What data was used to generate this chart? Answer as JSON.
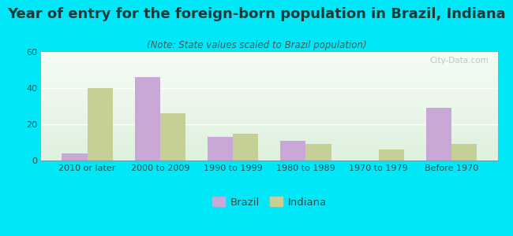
{
  "title": "Year of entry for the foreign-born population in Brazil, Indiana",
  "subtitle": "(Note: State values scaled to Brazil population)",
  "categories": [
    "2010 or later",
    "2000 to 2009",
    "1990 to 1999",
    "1980 to 1989",
    "1970 to 1979",
    "Before 1970"
  ],
  "brazil_values": [
    4,
    46,
    13,
    11,
    0,
    29
  ],
  "indiana_values": [
    40,
    26,
    15,
    9,
    6,
    9
  ],
  "brazil_color": "#c9a8d8",
  "indiana_color": "#c5cf96",
  "background_outer": "#00e8f8",
  "ylim": [
    0,
    60
  ],
  "yticks": [
    0,
    20,
    40,
    60
  ],
  "bar_width": 0.35,
  "title_fontsize": 13,
  "subtitle_fontsize": 8.5,
  "tick_fontsize": 8,
  "legend_fontsize": 9.5,
  "title_color": "#1a3a3a",
  "subtitle_color": "#3a6060",
  "tick_color": "#2a5050"
}
